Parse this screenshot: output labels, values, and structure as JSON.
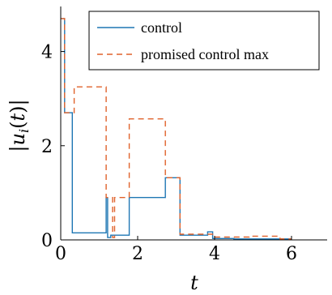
{
  "chart_data": {
    "type": "line",
    "title": "",
    "xlabel": "t",
    "ylabel": "|u_i(t)|",
    "xlim": [
      0,
      7
    ],
    "ylim": [
      0,
      4.9
    ],
    "xticks": [
      0,
      2,
      4,
      6
    ],
    "yticks": [
      0,
      2,
      4
    ],
    "x_tick_labels": [
      "0",
      "2",
      "4",
      "6"
    ],
    "y_tick_labels": [
      "0",
      "2",
      "4"
    ],
    "grid": false,
    "legend_position": "top-right",
    "series": [
      {
        "name": "control",
        "color": "#1f77b4",
        "dash": "solid",
        "step_points": [
          [
            0.0,
            4.7
          ],
          [
            0.1,
            4.7
          ],
          [
            0.1,
            2.7
          ],
          [
            0.3,
            2.7
          ],
          [
            0.3,
            0.15
          ],
          [
            1.18,
            0.15
          ],
          [
            1.18,
            0.9
          ],
          [
            1.22,
            0.9
          ],
          [
            1.22,
            0.05
          ],
          [
            1.3,
            0.05
          ],
          [
            1.3,
            0.1
          ],
          [
            1.78,
            0.1
          ],
          [
            1.78,
            0.9
          ],
          [
            2.72,
            0.9
          ],
          [
            2.72,
            1.32
          ],
          [
            3.1,
            1.32
          ],
          [
            3.1,
            0.1
          ],
          [
            3.82,
            0.1
          ],
          [
            3.82,
            0.17
          ],
          [
            3.95,
            0.17
          ],
          [
            3.95,
            0.03
          ],
          [
            4.5,
            0.03
          ],
          [
            4.5,
            0.02
          ],
          [
            6.0,
            0.02
          ]
        ]
      },
      {
        "name": "promised control max",
        "color": "#e0622b",
        "dash": "dashed",
        "step_points": [
          [
            0.0,
            4.7
          ],
          [
            0.1,
            4.7
          ],
          [
            0.1,
            2.7
          ],
          [
            0.35,
            2.7
          ],
          [
            0.35,
            3.25
          ],
          [
            1.18,
            3.25
          ],
          [
            1.18,
            0.9
          ],
          [
            1.35,
            0.9
          ],
          [
            1.35,
            0.05
          ],
          [
            1.4,
            0.05
          ],
          [
            1.4,
            0.9
          ],
          [
            1.78,
            0.9
          ],
          [
            1.78,
            2.57
          ],
          [
            2.72,
            2.57
          ],
          [
            2.72,
            1.32
          ],
          [
            3.1,
            1.32
          ],
          [
            3.1,
            0.12
          ],
          [
            3.95,
            0.12
          ],
          [
            3.95,
            0.06
          ],
          [
            4.9,
            0.06
          ],
          [
            4.9,
            0.08
          ],
          [
            5.7,
            0.08
          ],
          [
            5.7,
            0.02
          ],
          [
            6.0,
            0.02
          ]
        ]
      }
    ]
  }
}
